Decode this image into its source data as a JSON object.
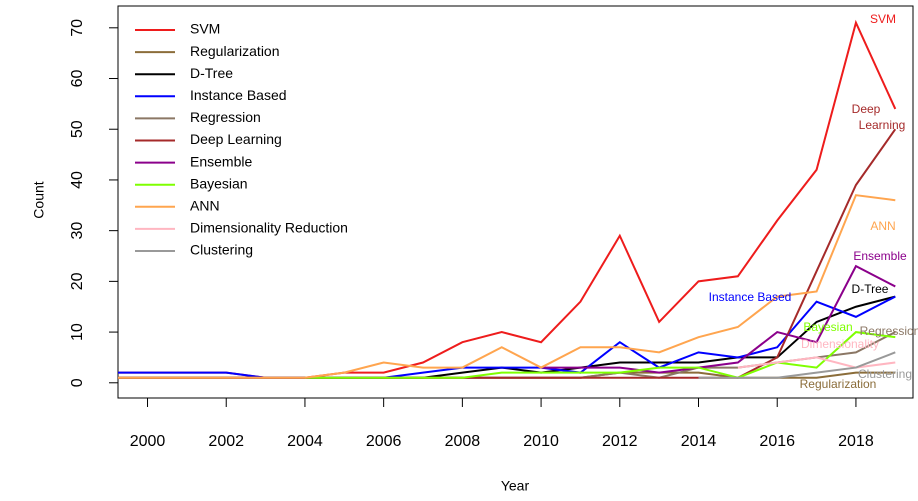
{
  "chart_data": {
    "type": "line",
    "x_label": "Year",
    "y_label": "Count",
    "x": [
      1999,
      2000,
      2001,
      2002,
      2003,
      2004,
      2005,
      2006,
      2007,
      2008,
      2009,
      2010,
      2011,
      2012,
      2013,
      2014,
      2015,
      2016,
      2017,
      2018,
      2019
    ],
    "xlim": [
      1999.25,
      2019.45
    ],
    "xticks": [
      2000,
      2002,
      2004,
      2006,
      2008,
      2010,
      2012,
      2014,
      2016,
      2018
    ],
    "ylim": [
      -3,
      74.3
    ],
    "yticks": [
      0,
      10,
      20,
      30,
      40,
      50,
      60,
      70
    ],
    "series": [
      {
        "name": "SVM",
        "color": "#ee1c1c",
        "values": [
          2,
          2,
          2,
          2,
          1,
          1,
          2,
          2,
          4,
          8,
          10,
          8,
          16,
          29,
          12,
          20,
          21,
          32,
          42,
          71,
          54
        ]
      },
      {
        "name": "Regularization",
        "color": "#8b6d3a",
        "values": [
          1,
          1,
          1,
          1,
          1,
          1,
          1,
          1,
          1,
          1,
          1,
          1,
          1,
          2,
          2,
          2,
          1,
          1,
          1,
          2,
          2
        ]
      },
      {
        "name": "D-Tree",
        "color": "#000000",
        "values": [
          1,
          1,
          1,
          1,
          1,
          1,
          1,
          1,
          1,
          2,
          3,
          2,
          3,
          4,
          4,
          4,
          5,
          5,
          12,
          15,
          17
        ]
      },
      {
        "name": "Instance Based",
        "color": "#0000ff",
        "values": [
          2,
          2,
          2,
          2,
          1,
          1,
          1,
          1,
          2,
          3,
          3,
          3,
          2,
          8,
          3,
          6,
          5,
          7,
          16,
          13,
          17
        ]
      },
      {
        "name": "Regression",
        "color": "#8b7765",
        "values": [
          1,
          1,
          1,
          1,
          1,
          1,
          1,
          1,
          1,
          1,
          1,
          1,
          1,
          2,
          1,
          3,
          3,
          4,
          5,
          6,
          10
        ]
      },
      {
        "name": "Deep Learning",
        "color": "#a52a2a",
        "values": [
          1,
          1,
          1,
          1,
          1,
          1,
          1,
          1,
          1,
          1,
          1,
          1,
          1,
          1,
          1,
          1,
          1,
          5,
          22,
          39,
          50
        ]
      },
      {
        "name": "Ensemble",
        "color": "#8b008b",
        "values": [
          null,
          null,
          null,
          null,
          null,
          null,
          null,
          null,
          null,
          null,
          null,
          3,
          3,
          3,
          2,
          3,
          4,
          10,
          8,
          23,
          19
        ]
      },
      {
        "name": "Bayesian",
        "color": "#7fff00",
        "values": [
          null,
          null,
          null,
          null,
          null,
          1,
          1,
          1,
          1,
          1,
          2,
          2,
          2,
          2,
          3,
          3,
          1,
          4,
          3,
          10,
          9
        ]
      },
      {
        "name": "ANN",
        "color": "#ffa54f",
        "values": [
          1,
          1,
          1,
          1,
          1,
          1,
          2,
          4,
          3,
          3,
          7,
          3,
          7,
          7,
          6,
          9,
          11,
          17,
          18,
          37,
          36
        ]
      },
      {
        "name": "Dimensionality Reduction",
        "color": "#ffb6c1",
        "values": [
          null,
          null,
          null,
          null,
          null,
          null,
          null,
          null,
          null,
          null,
          null,
          null,
          null,
          null,
          null,
          null,
          3,
          4,
          5,
          3,
          4
        ]
      },
      {
        "name": "Clustering",
        "color": "#999999",
        "values": [
          null,
          null,
          null,
          null,
          null,
          null,
          null,
          null,
          null,
          null,
          null,
          null,
          null,
          null,
          null,
          1,
          1,
          1,
          2,
          3,
          6
        ]
      }
    ],
    "annotations": [
      "SVM",
      "Deep",
      "Learning",
      "ANN",
      "Ensemble",
      "D-Tree",
      "Instance  Based",
      "Bayesian",
      "Regression",
      "Dimensionality",
      "Clustering",
      "Regularization"
    ]
  }
}
